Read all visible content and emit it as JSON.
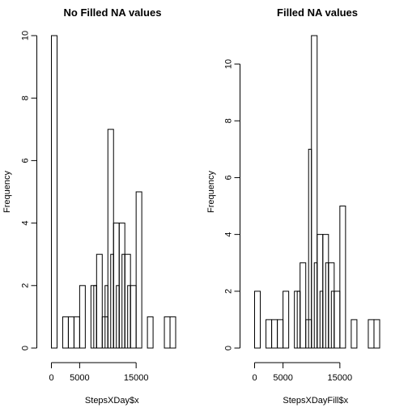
{
  "chart_data": [
    {
      "type": "bar",
      "title": "No Filled NA values",
      "xlabel": "StepsXDay$x",
      "ylabel": "Frequency",
      "bin_width": 1000,
      "xlim": [
        0,
        22000
      ],
      "ylim": [
        0,
        10
      ],
      "xticks": [
        0,
        5000,
        15000
      ],
      "yticks": [
        0,
        2,
        4,
        6,
        8,
        10
      ],
      "bin_starts": [
        0,
        1000,
        2000,
        3000,
        4000,
        5000,
        6000,
        7000,
        8000,
        9000,
        10000,
        11000,
        12000,
        13000,
        14000,
        15000,
        16000,
        17000,
        18000,
        19000,
        20000,
        21000
      ],
      "values": [
        10,
        0,
        1,
        1,
        1,
        2,
        0,
        2,
        3,
        1,
        7,
        4,
        4,
        3,
        2,
        5,
        0,
        1,
        0,
        0,
        1,
        1
      ],
      "inner_bins": [
        {
          "x0": 7500,
          "x1": 8000,
          "value": 2
        },
        {
          "x0": 9500,
          "x1": 10000,
          "value": 2
        },
        {
          "x0": 10500,
          "x1": 11000,
          "value": 3
        },
        {
          "x0": 11500,
          "x1": 12000,
          "value": 2
        },
        {
          "x0": 12500,
          "x1": 13000,
          "value": 3
        },
        {
          "x0": 13500,
          "x1": 14000,
          "value": 2
        }
      ],
      "grid": false
    },
    {
      "type": "bar",
      "title": "Filled NA values",
      "xlabel": "StepsXDayFill$x",
      "ylabel": "Frequency",
      "bin_width": 1000,
      "xlim": [
        0,
        22000
      ],
      "ylim": [
        0,
        11
      ],
      "xticks": [
        0,
        5000,
        15000
      ],
      "yticks": [
        0,
        2,
        4,
        6,
        8,
        10
      ],
      "bin_starts": [
        0,
        1000,
        2000,
        3000,
        4000,
        5000,
        6000,
        7000,
        8000,
        9000,
        10000,
        11000,
        12000,
        13000,
        14000,
        15000,
        16000,
        17000,
        18000,
        19000,
        20000,
        21000
      ],
      "values": [
        2,
        0,
        1,
        1,
        1,
        2,
        0,
        2,
        3,
        1,
        11,
        4,
        4,
        3,
        2,
        5,
        0,
        1,
        0,
        0,
        1,
        1
      ],
      "inner_bins": [
        {
          "x0": 7500,
          "x1": 8000,
          "value": 2
        },
        {
          "x0": 9500,
          "x1": 10000,
          "value": 7
        },
        {
          "x0": 10500,
          "x1": 11000,
          "value": 3
        },
        {
          "x0": 11500,
          "x1": 12000,
          "value": 2
        },
        {
          "x0": 12500,
          "x1": 13000,
          "value": 3
        },
        {
          "x0": 13500,
          "x1": 14000,
          "value": 2
        }
      ],
      "grid": false
    }
  ]
}
